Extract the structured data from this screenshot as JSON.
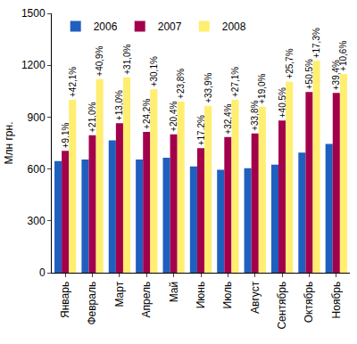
{
  "chart_data": {
    "type": "bar",
    "y_label": "Млн грн.",
    "categories": [
      "Январь",
      "Февраль",
      "Март",
      "Апрель",
      "Май",
      "Июнь",
      "Июль",
      "Август",
      "Сентябрь",
      "Октябрь",
      "Ноябрь"
    ],
    "series": [
      {
        "name": "2006",
        "color": "#1f5fbf",
        "values": [
          645,
          655,
          765,
          655,
          665,
          615,
          595,
          605,
          625,
          695,
          745
        ]
      },
      {
        "name": "2007",
        "color": "#a3004c",
        "values": [
          705,
          795,
          865,
          815,
          800,
          720,
          785,
          805,
          880,
          1045,
          1040
        ]
      },
      {
        "name": "2008",
        "color": "#ffee70",
        "values": [
          1000,
          1120,
          1130,
          1060,
          990,
          965,
          1000,
          960,
          1105,
          1225,
          1150
        ]
      }
    ],
    "annotations": [
      {
        "series": "2007",
        "texts": [
          "+9,1%",
          "+21,0%",
          "+13,0%",
          "+24,2%",
          "+20,4%",
          "+17,2%",
          "+32,4%",
          "+33,8%",
          "+40,5%",
          "+50,5%",
          "+39,4%"
        ]
      },
      {
        "series": "2008",
        "texts": [
          "+42,1%",
          "+40,9%",
          "+31,0%",
          "+30,1%",
          "+23,8%",
          "+33,9%",
          "+27,1%",
          "+19,0%",
          "+25,7%",
          "+17,3%",
          "+10,6%"
        ]
      }
    ],
    "ylim": [
      0,
      1500
    ],
    "yticks": [
      0,
      300,
      600,
      900,
      1200,
      1500
    ],
    "grid": false,
    "legend": "top left"
  }
}
